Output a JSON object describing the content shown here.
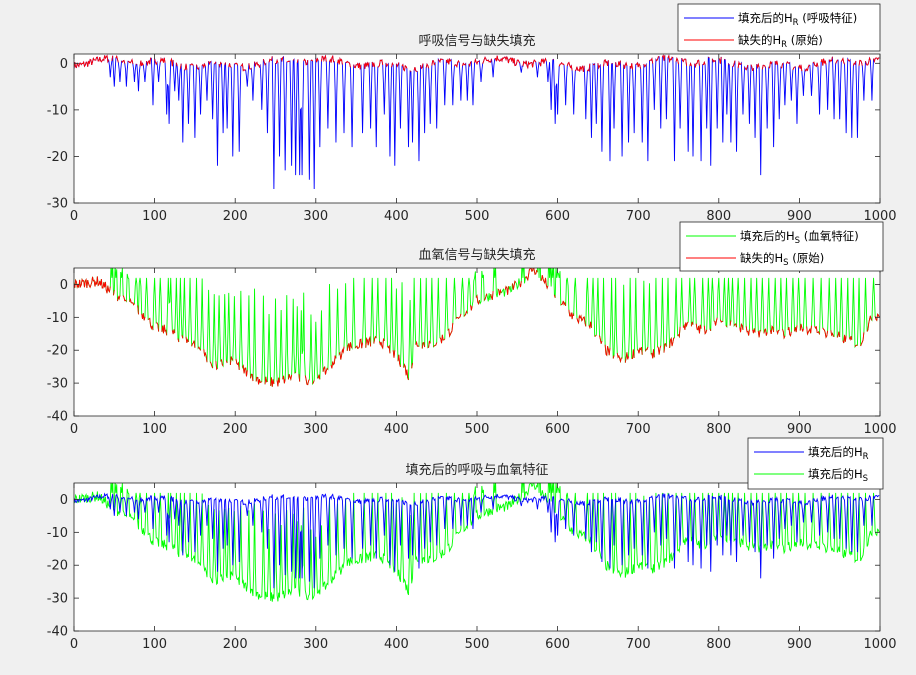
{
  "chart_data": [
    {
      "type": "line",
      "title": "呼吸信号与缺失填充",
      "xlim": [
        0,
        1000
      ],
      "ylim": [
        -30,
        2
      ],
      "xticks": [
        "0",
        "100",
        "200",
        "300",
        "400",
        "500",
        "600",
        "700",
        "800",
        "900",
        "1000"
      ],
      "yticks": [
        "0",
        "-10",
        "-20",
        "-30"
      ],
      "grid": false,
      "legend_position": "top-right",
      "series": [
        {
          "name": "填充后的H",
          "sub": "R",
          "suffix": " (呼吸特征)",
          "color": "#0000ff",
          "description_values": {
            "baseline_range": [
              -2,
              1.5
            ],
            "spike_min": -27,
            "spikes": [
              [
                45,
                -3
              ],
              [
                50,
                -5
              ],
              [
                57,
                -4
              ],
              [
                65,
                -5
              ],
              [
                75,
                -4
              ],
              [
                80,
                -6
              ],
              [
                88,
                -4
              ],
              [
                98,
                -9
              ],
              [
                105,
                -4
              ],
              [
                115,
                -11
              ],
              [
                118,
                -13
              ],
              [
                125,
                -6
              ],
              [
                130,
                -8
              ],
              [
                135,
                -17
              ],
              [
                142,
                -13
              ],
              [
                150,
                -16
              ],
              [
                157,
                -11
              ],
              [
                165,
                -8
              ],
              [
                172,
                -12
              ],
              [
                178,
                -22
              ],
              [
                185,
                -15
              ],
              [
                190,
                -14
              ],
              [
                197,
                -20
              ],
              [
                205,
                -19
              ],
              [
                215,
                -5
              ],
              [
                222,
                -8
              ],
              [
                233,
                -10
              ],
              [
                240,
                -15
              ],
              [
                248,
                -27
              ],
              [
                255,
                -20
              ],
              [
                262,
                -23
              ],
              [
                270,
                -22
              ],
              [
                275,
                -24
              ],
              [
                280,
                -24
              ],
              [
                283,
                -24
              ],
              [
                292,
                -25
              ],
              [
                298,
                -27
              ],
              [
                305,
                -18
              ],
              [
                315,
                -14
              ],
              [
                325,
                -17
              ],
              [
                335,
                -15
              ],
              [
                345,
                -18
              ],
              [
                358,
                -15
              ],
              [
                368,
                -14
              ],
              [
                375,
                -18
              ],
              [
                385,
                -11
              ],
              [
                392,
                -20
              ],
              [
                398,
                -22
              ],
              [
                405,
                -14
              ],
              [
                415,
                -18
              ],
              [
                420,
                -17
              ],
              [
                428,
                -21
              ],
              [
                435,
                -15
              ],
              [
                442,
                -13
              ],
              [
                450,
                -14
              ],
              [
                460,
                -9
              ],
              [
                470,
                -9
              ],
              [
                480,
                -8
              ],
              [
                488,
                -8
              ],
              [
                495,
                -9
              ],
              [
                505,
                -4
              ],
              [
                520,
                -3
              ],
              [
                555,
                -2
              ],
              [
                575,
                -3
              ],
              [
                588,
                -4
              ],
              [
                592,
                -10
              ],
              [
                597,
                -13
              ],
              [
                600,
                -11
              ],
              [
                610,
                -9
              ],
              [
                620,
                -11
              ],
              [
                635,
                -12
              ],
              [
                642,
                -16
              ],
              [
                648,
                -13
              ],
              [
                655,
                -19
              ],
              [
                665,
                -21
              ],
              [
                670,
                -14
              ],
              [
                680,
                -20
              ],
              [
                688,
                -17
              ],
              [
                695,
                -15
              ],
              [
                705,
                -17
              ],
              [
                712,
                -21
              ],
              [
                720,
                -10
              ],
              [
                728,
                -14
              ],
              [
                735,
                -12
              ],
              [
                745,
                -21
              ],
              [
                752,
                -14
              ],
              [
                762,
                -19
              ],
              [
                768,
                -20
              ],
              [
                778,
                -21
              ],
              [
                785,
                -14
              ],
              [
                790,
                -22
              ],
              [
                798,
                -14
              ],
              [
                805,
                -17
              ],
              [
                810,
                -11
              ],
              [
                815,
                -17
              ],
              [
                822,
                -19
              ],
              [
                830,
                -11
              ],
              [
                838,
                -13
              ],
              [
                845,
                -16
              ],
              [
                852,
                -24
              ],
              [
                860,
                -14
              ],
              [
                868,
                -18
              ],
              [
                875,
                -12
              ],
              [
                882,
                -9
              ],
              [
                890,
                -8
              ],
              [
                897,
                -13
              ],
              [
                905,
                -7
              ],
              [
                915,
                -7
              ],
              [
                925,
                -11
              ],
              [
                935,
                -10
              ],
              [
                943,
                -12
              ],
              [
                950,
                -12
              ],
              [
                958,
                -15
              ],
              [
                965,
                -16
              ],
              [
                972,
                -16
              ],
              [
                980,
                -8
              ],
              [
                990,
                -8
              ]
            ]
          }
        },
        {
          "name": "缺失的H",
          "sub": "R",
          "suffix": " (原始)",
          "color": "#ff0000"
        }
      ]
    },
    {
      "type": "line",
      "title": "血氧信号与缺失填充",
      "xlim": [
        0,
        1000
      ],
      "ylim": [
        -40,
        5
      ],
      "xticks": [
        "0",
        "100",
        "200",
        "300",
        "400",
        "500",
        "600",
        "700",
        "800",
        "900",
        "1000"
      ],
      "yticks": [
        "0",
        "-10",
        "-20",
        "-30",
        "-40"
      ],
      "grid": false,
      "legend_position": "top-right",
      "series": [
        {
          "name": "填充后的H",
          "sub": "S",
          "suffix": " (血氧特征)",
          "color": "#00ff00"
        },
        {
          "name": "缺失的H",
          "sub": "S",
          "suffix": " (原始)",
          "color": "#ff0000",
          "description_values": {
            "trend_points": [
              [
                0,
                0
              ],
              [
                30,
                1
              ],
              [
                50,
                -3
              ],
              [
                70,
                -6
              ],
              [
                85,
                -9
              ],
              [
                100,
                -13
              ],
              [
                115,
                -14
              ],
              [
                130,
                -16
              ],
              [
                150,
                -18
              ],
              [
                175,
                -25
              ],
              [
                195,
                -23
              ],
              [
                210,
                -26
              ],
              [
                230,
                -29
              ],
              [
                250,
                -30
              ],
              [
                270,
                -28
              ],
              [
                290,
                -29
              ],
              [
                300,
                -30
              ],
              [
                320,
                -24
              ],
              [
                340,
                -19
              ],
              [
                360,
                -18
              ],
              [
                380,
                -17
              ],
              [
                400,
                -22
              ],
              [
                410,
                -25
              ],
              [
                415,
                -28
              ],
              [
                425,
                -18
              ],
              [
                445,
                -18
              ],
              [
                460,
                -16
              ],
              [
                480,
                -10
              ],
              [
                500,
                -5
              ],
              [
                520,
                -3
              ],
              [
                540,
                -2
              ],
              [
                560,
                2
              ],
              [
                570,
                5
              ],
              [
                580,
                2
              ],
              [
                600,
                -4
              ],
              [
                620,
                -10
              ],
              [
                640,
                -12
              ],
              [
                660,
                -20
              ],
              [
                680,
                -23
              ],
              [
                700,
                -20
              ],
              [
                720,
                -21
              ],
              [
                740,
                -18
              ],
              [
                760,
                -12
              ],
              [
                780,
                -14
              ],
              [
                800,
                -11
              ],
              [
                820,
                -12
              ],
              [
                840,
                -15
              ],
              [
                860,
                -14
              ],
              [
                880,
                -15
              ],
              [
                900,
                -13
              ],
              [
                920,
                -14
              ],
              [
                940,
                -15
              ],
              [
                960,
                -17
              ],
              [
                975,
                -18
              ],
              [
                990,
                -10
              ],
              [
                1000,
                -9
              ]
            ]
          }
        }
      ]
    },
    {
      "type": "line",
      "title": "填充后的呼吸与血氧特征",
      "xlim": [
        0,
        1000
      ],
      "ylim": [
        -40,
        5
      ],
      "xticks": [
        "0",
        "100",
        "200",
        "300",
        "400",
        "500",
        "600",
        "700",
        "800",
        "900",
        "1000"
      ],
      "yticks": [
        "0",
        "-10",
        "-20",
        "-30",
        "-40"
      ],
      "grid": false,
      "legend_position": "top-right",
      "series": [
        {
          "name": "填充后的H",
          "sub": "R",
          "suffix": "",
          "color": "#0000ff"
        },
        {
          "name": "填充后的H",
          "sub": "S",
          "suffix": "",
          "color": "#00ff00"
        }
      ]
    }
  ]
}
